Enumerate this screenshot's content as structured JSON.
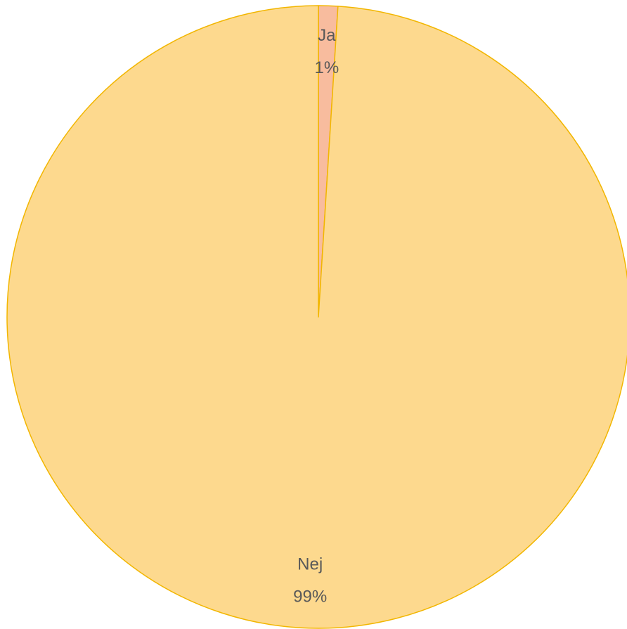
{
  "chart_data": {
    "type": "pie",
    "categories": [
      "Ja",
      "Nej"
    ],
    "values": [
      1,
      99
    ],
    "value_labels": [
      "1%",
      "99%"
    ],
    "colors": [
      "#f8bc9e",
      "#fdd98e"
    ],
    "edge_color": "#f2b600"
  }
}
